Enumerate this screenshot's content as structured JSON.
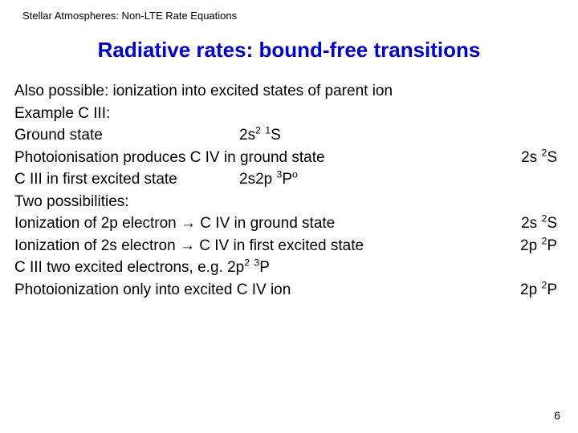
{
  "header": "Stellar Atmospheres:  Non-LTE Rate Equations",
  "title": "Radiative rates: bound-free transitions",
  "lines": {
    "l1": "Also possible: ionization into excited states of parent ion",
    "l2": "Example C III:",
    "l3_left": "Ground state",
    "l4_left": "Photoionisation produces C IV in ground state",
    "l5_left": "C III in first excited state",
    "l6_left": "Two possibilities:",
    "l7_left": "Ionization of 2p electron → C IV in ground state",
    "l8_left": "Ionization of 2s electron → C IV in first excited state",
    "l10_left": "Photoionization only into excited C IV ion"
  },
  "terms": {
    "l3_mid_a": "2s",
    "l3_mid_b": "2",
    "l3_mid_c": " ",
    "l3_mid_d": "1",
    "l3_mid_e": "S",
    "l4_r_a": "2s ",
    "l4_r_b": "2",
    "l4_r_c": "S",
    "l5_mid_a": "2s2p ",
    "l5_mid_b": "3",
    "l5_mid_c": "P",
    "l5_mid_d": "o",
    "l7_r_a": "2s ",
    "l7_r_b": "2",
    "l7_r_c": "S",
    "l8_r_a": "2p ",
    "l8_r_b": "2",
    "l8_r_c": "P",
    "l9_a": "C III two excited electrons, e.g.  2p",
    "l9_b": "2",
    "l9_c": " ",
    "l9_d": "3",
    "l9_e": "P",
    "l10_r_a": "2p ",
    "l10_r_b": "2",
    "l10_r_c": "P"
  },
  "pageNumber": "6"
}
